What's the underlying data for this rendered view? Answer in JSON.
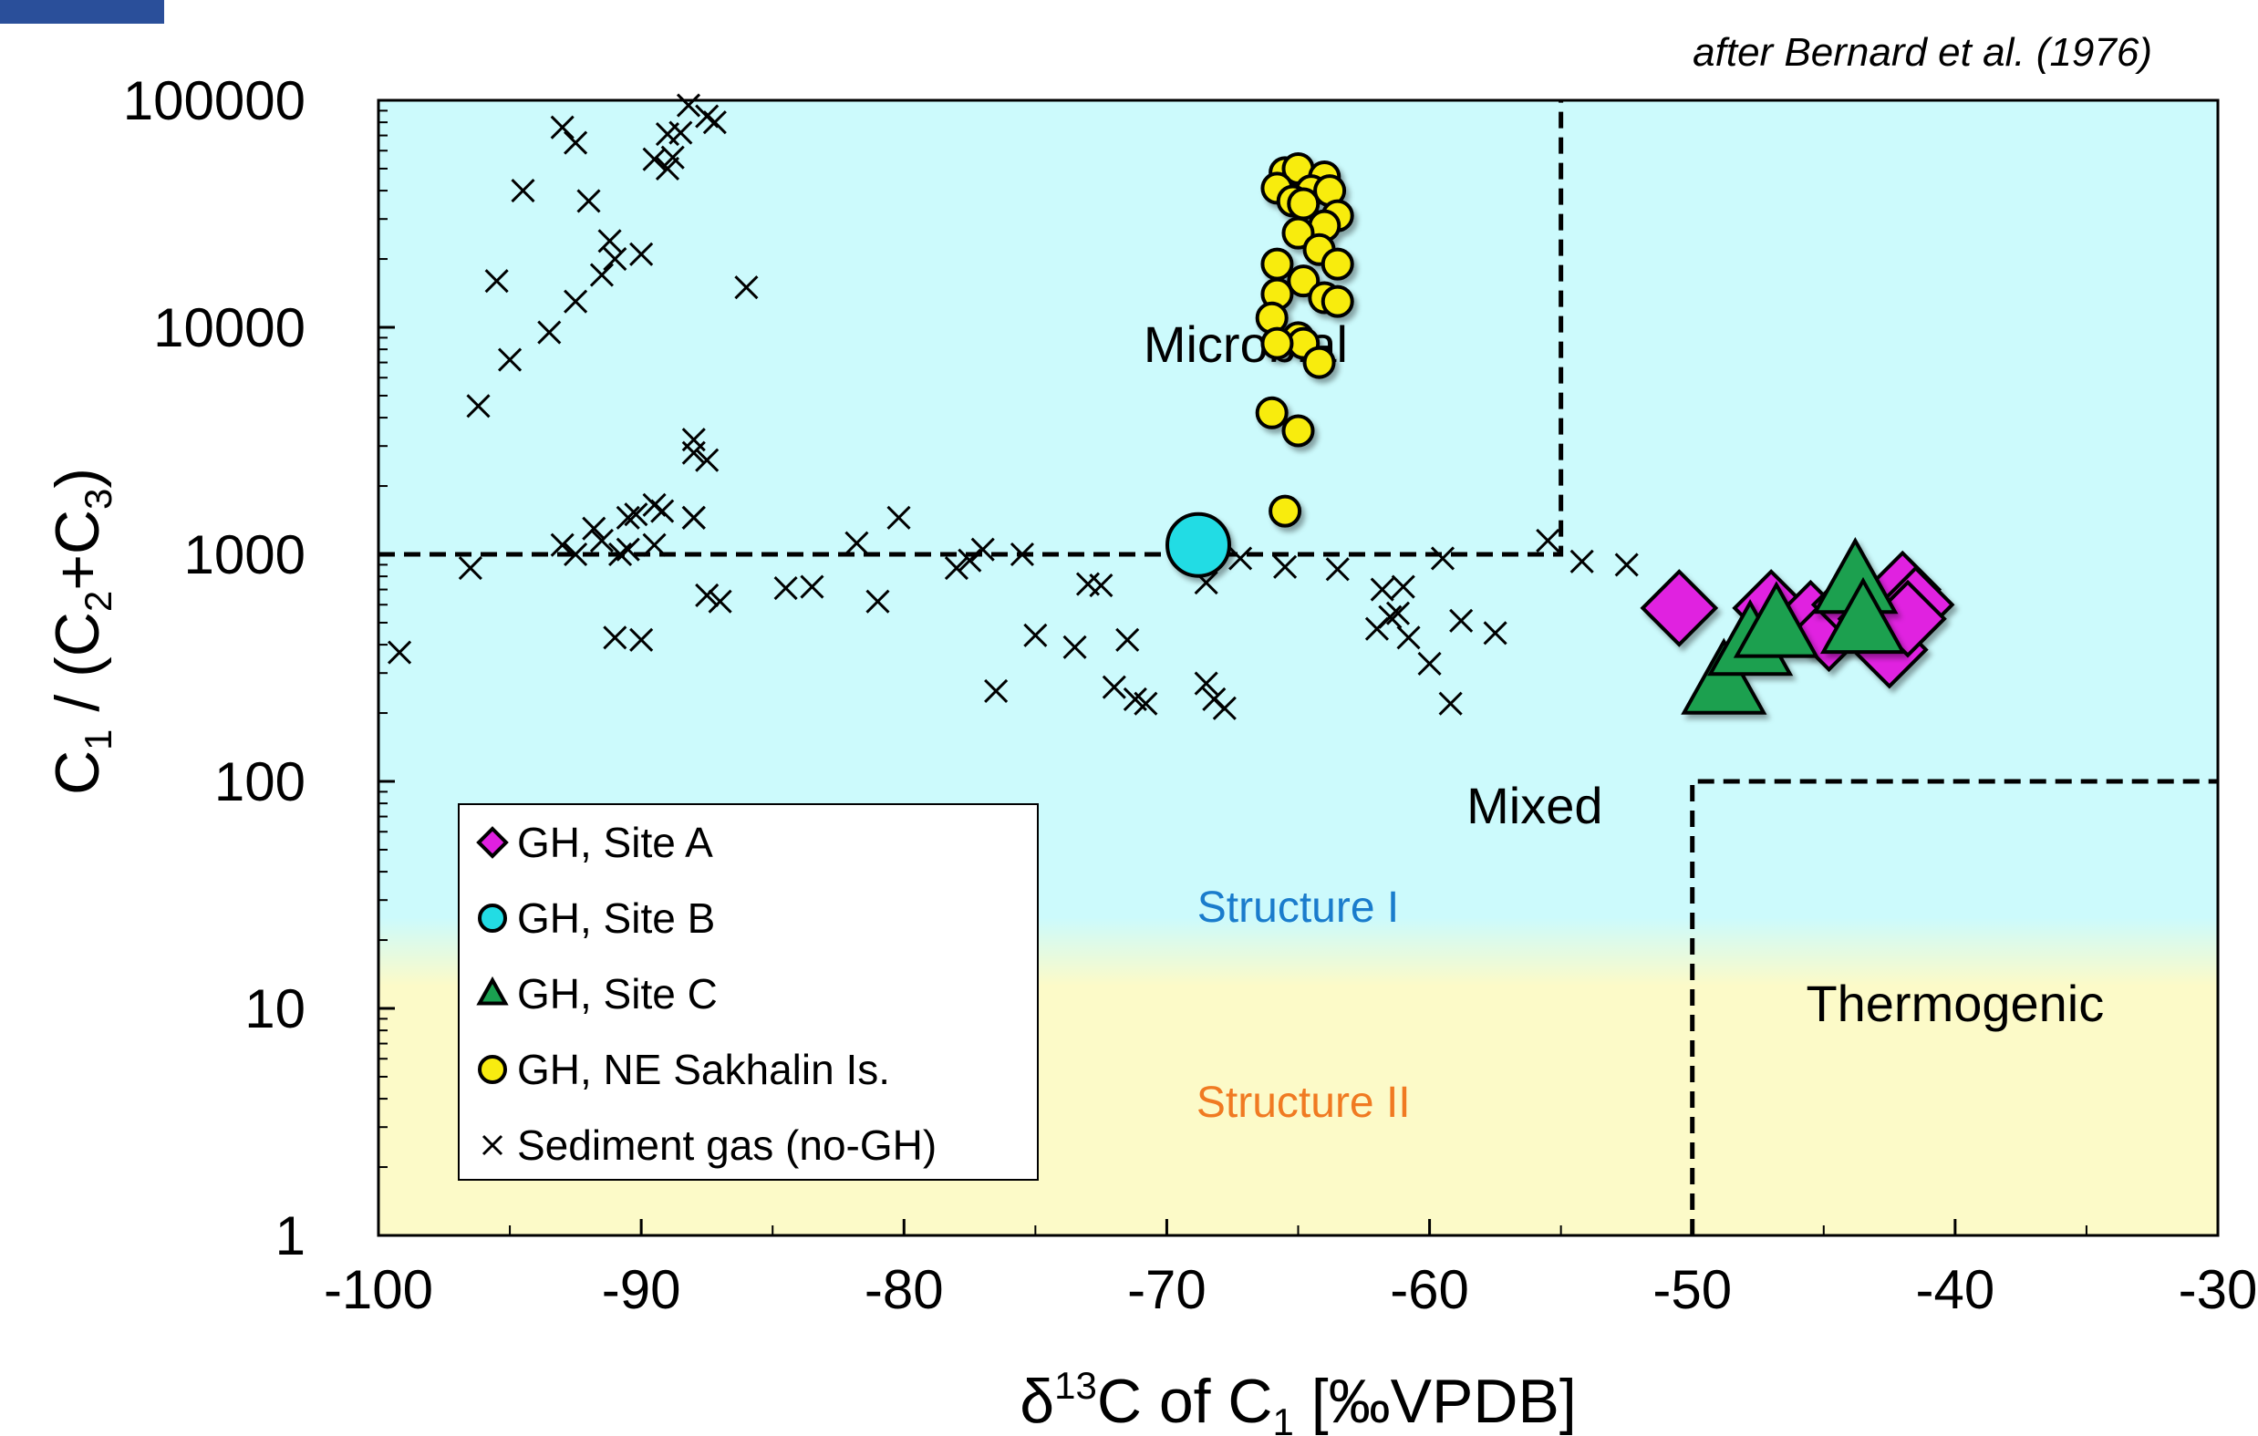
{
  "credit": "after Bernard et al. (1976)",
  "regions": {
    "microbial": "Microbial",
    "mixed": "Mixed",
    "thermogenic": "Thermogenic",
    "structure_1": "Structure I",
    "structure_2": "Structure II"
  },
  "colors": {
    "plot_top": "#ccfafc",
    "plot_bottom": "#fcfac8",
    "structure_1_text": "#1a7ccc",
    "structure_2_text": "#f07a22",
    "site_a": "#e020e0",
    "site_b": "#22dce4",
    "site_c": "#1aa050",
    "sakhalin": "#f8ec10"
  },
  "chart_data": {
    "type": "scatter",
    "xlabel": {
      "prefix": "δ",
      "sup": "13",
      "mid": "C of C",
      "sub": "1",
      "suffix": " [‰VPDB]"
    },
    "ylabel": {
      "p1": "C",
      "s1": "1",
      "p2": " / (C",
      "s2": "2",
      "p3": "+C",
      "s3": "3",
      "p4": ")"
    },
    "xlim": [
      -100,
      -30
    ],
    "ylim": [
      1,
      100000
    ],
    "y_scale": "log",
    "x_ticks": [
      "-100",
      "-90",
      "-80",
      "-70",
      "-60",
      "-50",
      "-40",
      "-30"
    ],
    "y_ticks": [
      "1",
      "10",
      "100",
      "1000",
      "10000",
      "100000"
    ],
    "grid": false,
    "legend_position": "lower-left",
    "boundaries": [
      {
        "type": "dashed",
        "points": [
          [
            -100,
            1000
          ],
          [
            -55,
            1000
          ],
          [
            -55,
            100000
          ]
        ]
      },
      {
        "type": "dashed",
        "points": [
          [
            -50,
            1
          ],
          [
            -50,
            100
          ],
          [
            -30,
            100
          ]
        ]
      }
    ],
    "series": [
      {
        "name": "GH, Site A",
        "marker": "diamond",
        "x": [
          -50.5,
          -47.0,
          -45.5,
          -44.8,
          -44.0,
          -43.0,
          -42.0,
          -41.5,
          -42.5,
          -41.8
        ],
        "y": [
          580,
          580,
          520,
          450,
          600,
          520,
          700,
          600,
          380,
          520
        ]
      },
      {
        "name": "GH, Site B",
        "marker": "circle",
        "x": [
          -68.8
        ],
        "y": [
          1100
        ]
      },
      {
        "name": "GH, Site C",
        "marker": "triangle",
        "x": [
          -48.8,
          -47.8,
          -46.8,
          -43.8,
          -43.5
        ],
        "y": [
          270,
          400,
          480,
          750,
          500
        ]
      },
      {
        "name": "GH, NE Sakhalin Is.",
        "marker": "circle",
        "x": [
          -65.5,
          -65.0,
          -64.0,
          -65.8,
          -64.5,
          -63.8,
          -65.2,
          -64.8,
          -63.5,
          -64.0,
          -65.0,
          -64.2,
          -65.8,
          -63.5,
          -64.8,
          -65.8,
          -64.0,
          -63.5,
          -66.0,
          -65.0,
          -64.8,
          -65.8,
          -64.2,
          -66.0,
          -65.0,
          -65.5
        ],
        "y": [
          48000,
          50000,
          46000,
          41000,
          40000,
          40000,
          36000,
          35000,
          31000,
          28000,
          26000,
          22000,
          19000,
          19000,
          16000,
          14000,
          13500,
          13000,
          11000,
          9000,
          8500,
          8500,
          7000,
          4200,
          3500,
          1550
        ]
      },
      {
        "name": "Sediment gas (no-GH)",
        "marker": "x",
        "x": [
          -99.2,
          -96.5,
          -96.2,
          -95.5,
          -95.0,
          -94.5,
          -93.5,
          -93.0,
          -92.5,
          -92.5,
          -92.0,
          -91.5,
          -91.2,
          -91.0,
          -90.5,
          -90.0,
          -89.5,
          -89.2,
          -89.0,
          -88.8,
          -88.0,
          -87.5,
          -87.5,
          -87.2,
          -92.5,
          -91.8,
          -91.5,
          -91.0,
          -90.5,
          -90.0,
          -89.5,
          -89.0,
          -88.5,
          -88.2,
          -88.0,
          -88.0,
          -87.5,
          -93.0,
          -90.2,
          -90.8,
          -89.5,
          -87.0,
          -86.0,
          -84.5,
          -83.5,
          -81.8,
          -81.0,
          -80.2,
          -78.0,
          -77.5,
          -77.0,
          -76.5,
          -75.5,
          -75.0,
          -73.5,
          -73.0,
          -72.5,
          -72.0,
          -71.5,
          -71.2,
          -70.8,
          -68.8,
          -68.5,
          -68.2,
          -67.8,
          -67.2,
          -65.5,
          -63.5,
          -62.0,
          -61.8,
          -61.5,
          -61.2,
          -61.0,
          -60.8,
          -60.0,
          -59.5,
          -59.2,
          -58.8,
          -57.5,
          -55.5,
          -54.2,
          -52.5,
          -68.5,
          -88.0
        ],
        "y": [
          370,
          870,
          4500,
          16000,
          7200,
          40000,
          9500,
          1100,
          13000,
          65000,
          36000,
          17000,
          24000,
          20000,
          1450,
          21000,
          1650,
          1550,
          50000,
          56000,
          1450,
          2600,
          85000,
          80000,
          1000,
          1300,
          1150,
          430,
          1050,
          420,
          55000,
          71000,
          72000,
          95000,
          2800,
          3200,
          660,
          76000,
          1500,
          1000,
          1100,
          620,
          15000,
          710,
          720,
          1120,
          620,
          1450,
          870,
          940,
          1050,
          250,
          1000,
          440,
          390,
          740,
          730,
          260,
          420,
          230,
          220,
          1000,
          270,
          230,
          210,
          960,
          880,
          860,
          470,
          700,
          530,
          550,
          720,
          430,
          330,
          960,
          220,
          510,
          450,
          1150,
          930,
          900,
          750,
          1450
        ]
      }
    ]
  }
}
